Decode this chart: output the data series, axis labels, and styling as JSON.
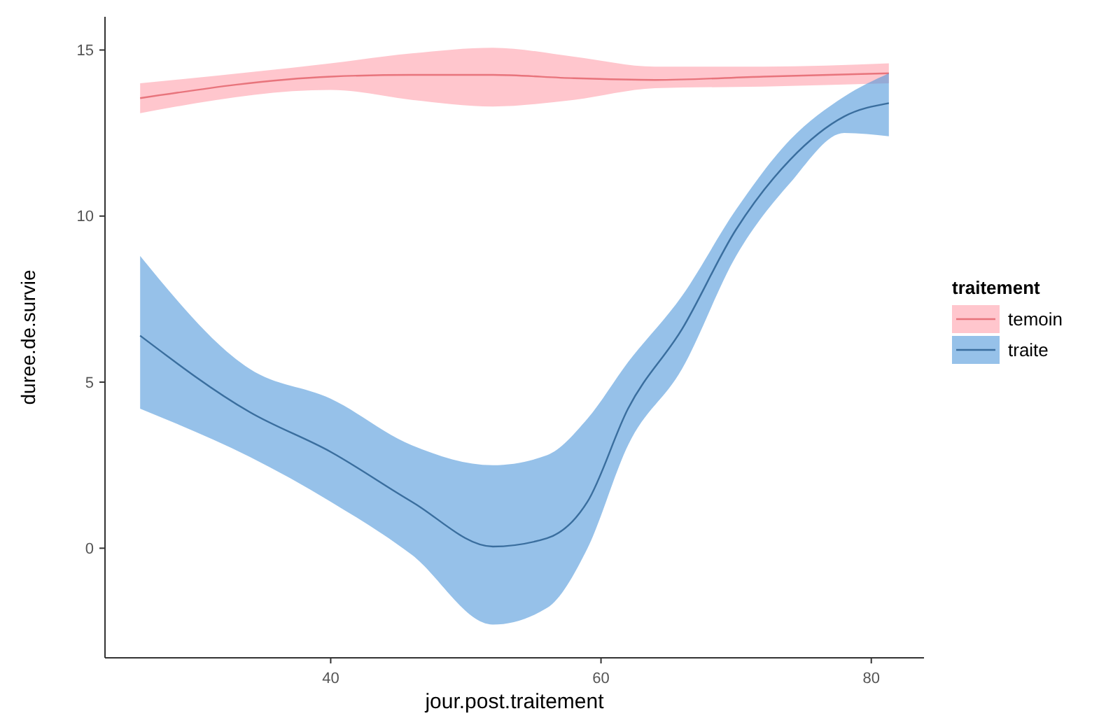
{
  "chart_data": {
    "type": "line",
    "xlabel": "jour.post.traitement",
    "ylabel": "duree.de.survie",
    "legend_title": "traitement",
    "legend": "right",
    "grid": false,
    "marker": "none",
    "line_style": "solid",
    "xlim": [
      23.3,
      83.9
    ],
    "xticks": [
      40,
      60,
      80
    ],
    "ylim": [
      -3.3,
      16
    ],
    "yticks": [
      0,
      5,
      10,
      15
    ],
    "series": [
      {
        "name": "temoin",
        "color": "#e8747c",
        "x": [
          25.9,
          40,
          46,
          52,
          58,
          64,
          72,
          81.3
        ],
        "values": [
          13.55,
          14.2,
          14.25,
          14.25,
          14.15,
          14.1,
          14.2,
          14.3
        ],
        "lower": [
          13.1,
          13.8,
          13.5,
          13.3,
          13.5,
          13.85,
          13.9,
          14.0
        ],
        "upper": [
          14.0,
          14.6,
          14.9,
          15.07,
          14.8,
          14.5,
          14.5,
          14.6
        ]
      },
      {
        "name": "traite",
        "color": "#3a6e9e",
        "x": [
          25.9,
          34,
          40,
          46,
          52,
          56,
          59,
          62,
          66,
          70,
          74,
          78,
          81.3
        ],
        "values": [
          6.4,
          4.1,
          2.9,
          1.4,
          0.05,
          0.3,
          1.4,
          4.2,
          6.6,
          9.6,
          11.7,
          13.0,
          13.4
        ],
        "lower": [
          4.2,
          2.75,
          1.4,
          -0.2,
          -2.3,
          -1.8,
          0,
          3.1,
          5.4,
          8.8,
          11.0,
          12.5,
          12.4
        ],
        "upper": [
          8.8,
          5.4,
          4.5,
          3.1,
          2.5,
          2.8,
          3.9,
          5.6,
          7.6,
          10.2,
          12.3,
          13.6,
          14.3
        ]
      }
    ]
  }
}
